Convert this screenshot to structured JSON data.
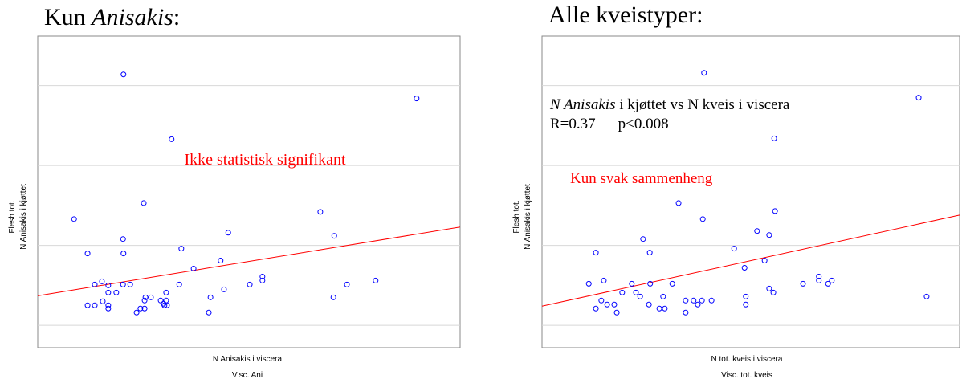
{
  "chart_data": [
    {
      "type": "scatter",
      "title": [
        {
          "text": "Kun ",
          "italic": false
        },
        {
          "text": "Anisakis",
          "italic": true
        },
        {
          "text": ":",
          "italic": false
        }
      ],
      "xlabel": [
        "N Anisakis i viscera",
        "Visc. Ani"
      ],
      "ylabel": [
        "Flesh tot.",
        "N Anisakis i kjøttet"
      ],
      "annotations": [
        {
          "parts": [
            {
              "text": "Ikke statistisk  signifikant",
              "italic": false
            }
          ],
          "color": "#ff0000"
        }
      ],
      "xlim": [
        0,
        100
      ],
      "ylim": [
        -0.28,
        3.62
      ],
      "yticks": [
        0,
        1,
        2,
        3
      ],
      "grid": true,
      "color": "#0000ff",
      "x": [
        20.3,
        89.7,
        31.7,
        25.1,
        8.6,
        66.9,
        45.1,
        70.2,
        20.2,
        11.8,
        20.3,
        34.0,
        43.3,
        36.9,
        53.2,
        53.2,
        80.0,
        73.2,
        50.2,
        33.5,
        21.9,
        20.2,
        15.2,
        13.5,
        44.1,
        16.7,
        16.7,
        18.6,
        30.4,
        26.8,
        25.5,
        25.3,
        29.1,
        30.4,
        40.9,
        70.0,
        29.8,
        30.0,
        30.6,
        15.4,
        11.8,
        13.5,
        16.7,
        16.7,
        24.3,
        25.3,
        23.4,
        40.5
      ],
      "y": [
        3.14,
        2.84,
        2.33,
        1.53,
        1.33,
        1.42,
        1.16,
        1.12,
        1.08,
        0.9,
        0.9,
        0.96,
        0.81,
        0.71,
        0.61,
        0.56,
        0.56,
        0.51,
        0.51,
        0.51,
        0.51,
        0.51,
        0.55,
        0.51,
        0.45,
        0.5,
        0.41,
        0.41,
        0.41,
        0.35,
        0.35,
        0.31,
        0.31,
        0.31,
        0.35,
        0.35,
        0.27,
        0.25,
        0.25,
        0.3,
        0.25,
        0.25,
        0.25,
        0.21,
        0.21,
        0.21,
        0.16,
        0.16
      ],
      "trend": {
        "x": [
          0,
          100
        ],
        "y": [
          0.37,
          1.23
        ],
        "color": "#ff0000"
      }
    },
    {
      "type": "scatter",
      "title": [
        {
          "text": "Alle kveistyper:",
          "italic": false
        }
      ],
      "xlabel": [
        "N tot. kveis i viscera",
        "Visc. tot. kveis"
      ],
      "ylabel": [
        "Flesh tot.",
        "N Anisakis i kjøttet"
      ],
      "annotations": [
        {
          "parts": [
            {
              "text": "N Anisakis",
              "italic": true
            },
            {
              "text": " i kjøttet vs N kveis i viscera",
              "italic": false
            }
          ],
          "color": "#000000"
        },
        {
          "parts": [
            {
              "text": "R=0.37",
              "italic": false
            },
            {
              "text": "p<0.008",
              "italic": false
            }
          ],
          "color": "#000000"
        },
        {
          "parts": [
            {
              "text": "Kun svak sammenheng",
              "italic": false
            }
          ],
          "color": "#ff0000"
        }
      ],
      "xlim": [
        0,
        100
      ],
      "ylim": [
        -0.28,
        3.62
      ],
      "yticks": [
        0,
        1,
        2,
        3
      ],
      "grid": true,
      "color": "#0000ff",
      "x": [
        38.8,
        90.2,
        55.6,
        32.7,
        38.5,
        55.8,
        51.5,
        54.4,
        24.2,
        12.9,
        25.8,
        46.0,
        53.3,
        48.5,
        66.3,
        66.3,
        69.4,
        68.5,
        62.5,
        31.2,
        25.9,
        21.5,
        14.8,
        11.2,
        54.4,
        55.4,
        22.5,
        19.2,
        29.0,
        23.5,
        92.1,
        48.8,
        14.2,
        34.4,
        36.3,
        38.3,
        40.6,
        15.6,
        17.3,
        25.6,
        37.3,
        48.8,
        12.9,
        28.1,
        29.4,
        17.9,
        34.4
      ],
      "y": [
        3.16,
        2.85,
        2.34,
        1.53,
        1.33,
        1.43,
        1.18,
        1.13,
        1.08,
        0.91,
        0.91,
        0.96,
        0.81,
        0.72,
        0.61,
        0.56,
        0.56,
        0.52,
        0.52,
        0.52,
        0.52,
        0.52,
        0.56,
        0.52,
        0.46,
        0.41,
        0.41,
        0.41,
        0.36,
        0.36,
        0.36,
        0.36,
        0.31,
        0.31,
        0.31,
        0.31,
        0.31,
        0.26,
        0.26,
        0.26,
        0.26,
        0.26,
        0.21,
        0.21,
        0.21,
        0.16,
        0.16
      ],
      "trend": {
        "x": [
          0,
          100
        ],
        "y": [
          0.24,
          1.38
        ],
        "color": "#ff0000"
      }
    }
  ]
}
